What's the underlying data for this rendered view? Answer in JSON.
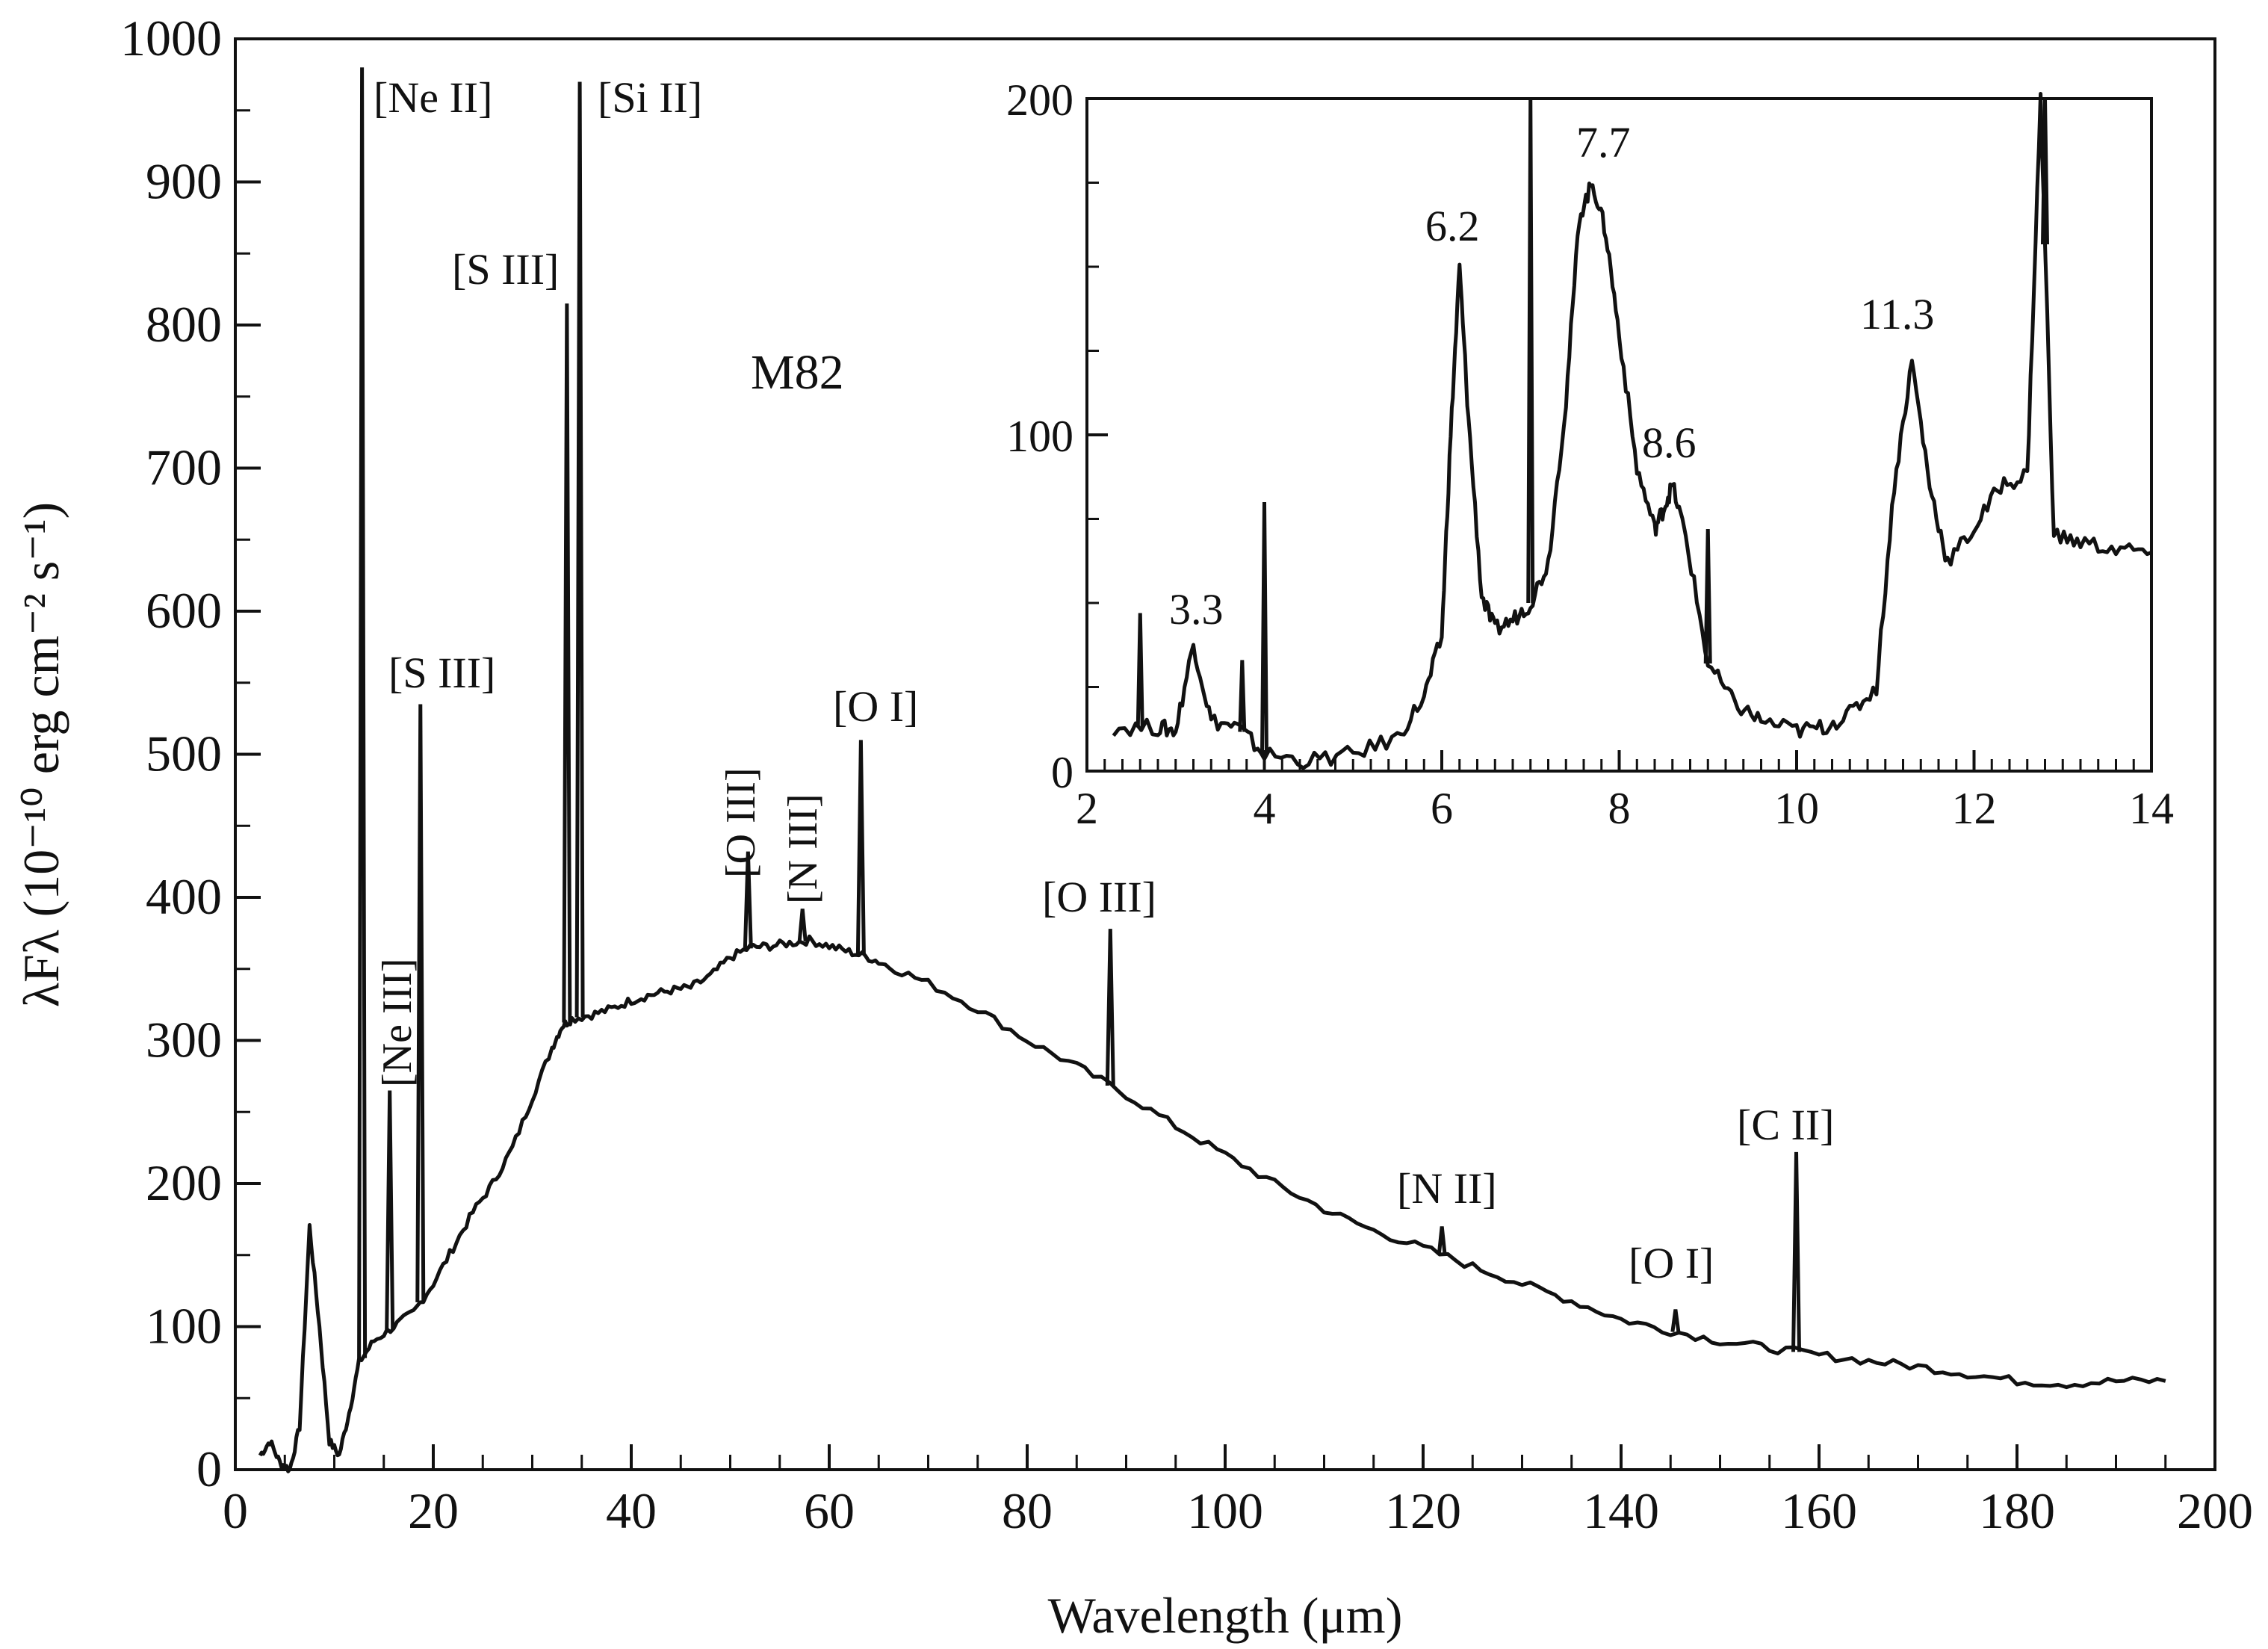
{
  "chart_data": [
    {
      "type": "line",
      "title": "M82",
      "xlabel": "Wavelength (μm)",
      "ylabel": "λFλ (10⁻¹⁰ erg cm⁻² s⁻¹)",
      "xlim": [
        0,
        200
      ],
      "ylim": [
        0,
        1000
      ],
      "x_ticks": [
        "0",
        "20",
        "40",
        "60",
        "80",
        "100",
        "120",
        "140",
        "160",
        "180",
        "200"
      ],
      "y_ticks": [
        "0",
        "100",
        "200",
        "300",
        "400",
        "500",
        "600",
        "700",
        "800",
        "900",
        "1000"
      ],
      "series": [
        {
          "x": [
            2.5,
            3.5,
            4.5,
            5.5,
            6.5,
            7.5,
            8.5,
            9.5,
            10.5,
            11.5,
            12.5,
            14,
            16,
            18,
            20,
            22,
            24,
            26,
            28,
            30,
            32,
            33,
            34,
            36,
            38,
            40,
            42,
            44,
            46,
            48,
            50,
            52,
            54,
            56,
            58,
            60,
            62,
            64,
            66,
            70,
            75,
            80,
            85,
            90,
            95,
            100,
            105,
            110,
            115,
            120,
            125,
            130,
            135,
            140,
            145,
            150,
            155,
            160,
            165,
            170,
            175,
            180,
            185,
            190,
            195
          ],
          "y": [
            10,
            20,
            5,
            0,
            30,
            170,
            100,
            20,
            10,
            40,
            75,
            90,
            100,
            110,
            130,
            155,
            180,
            200,
            225,
            260,
            295,
            310,
            315,
            318,
            322,
            328,
            332,
            335,
            337,
            345,
            358,
            365,
            366,
            368,
            370,
            366,
            362,
            358,
            352,
            340,
            322,
            300,
            282,
            262,
            240,
            220,
            200,
            182,
            167,
            155,
            142,
            130,
            118,
            105,
            97,
            90,
            85,
            80,
            76,
            72,
            67,
            62,
            60,
            62,
            62
          ]
        }
      ],
      "emission_lines": [
        {
          "label": "[Ne II]",
          "x": 12.8,
          "peak": 980
        },
        {
          "label": "[Ne III]",
          "x": 15.6,
          "peak": 265
        },
        {
          "label": "[S III]",
          "x": 18.7,
          "peak": 535
        },
        {
          "label": "[S III]",
          "x": 33.5,
          "peak": 815
        },
        {
          "label": "[Si II]",
          "x": 34.8,
          "peak": 970
        },
        {
          "label": "[O III]",
          "x": 51.8,
          "peak": 432
        },
        {
          "label": "[N III]",
          "x": 57.3,
          "peak": 392
        },
        {
          "label": "[O I]",
          "x": 63.2,
          "peak": 510
        },
        {
          "label": "[O III]",
          "x": 88.4,
          "peak": 378
        },
        {
          "label": "[N II]",
          "x": 121.9,
          "peak": 170
        },
        {
          "label": "[O I]",
          "x": 145.5,
          "peak": 112
        },
        {
          "label": "[C II]",
          "x": 157.7,
          "peak": 222
        }
      ],
      "annotations": [
        "[Ne II]",
        "[Si II]",
        "[S III]",
        "[S III]",
        "[Ne III]",
        "[O III]",
        "[N III]",
        "[O I]",
        "[O III]",
        "[N II]",
        "[O I]",
        "[C II]"
      ],
      "grid": false,
      "legend": "none"
    },
    {
      "type": "line",
      "title": "",
      "xlabel": "",
      "ylabel": "",
      "xlim": [
        2,
        14
      ],
      "ylim": [
        0,
        200
      ],
      "x_ticks": [
        "2",
        "4",
        "6",
        "8",
        "10",
        "12",
        "14"
      ],
      "y_ticks": [
        "0",
        "100",
        "200"
      ],
      "series": [
        {
          "x": [
            2.3,
            2.8,
            3.0,
            3.2,
            3.4,
            3.7,
            4.0,
            4.5,
            5.0,
            5.5,
            5.8,
            6.0,
            6.1,
            6.2,
            6.3,
            6.45,
            6.6,
            6.8,
            7.0,
            7.2,
            7.4,
            7.55,
            7.7,
            7.85,
            8.0,
            8.2,
            8.4,
            8.5,
            8.6,
            8.75,
            9.0,
            9.3,
            9.6,
            10.0,
            10.3,
            10.6,
            10.9,
            11.1,
            11.3,
            11.5,
            11.7,
            12.0,
            12.3,
            12.6,
            12.75,
            12.9,
            13.2,
            13.6,
            14.0
          ],
          "y": [
            13,
            13,
            12,
            38,
            15,
            13,
            5,
            3,
            5,
            10,
            22,
            40,
            100,
            150,
            105,
            52,
            42,
            45,
            50,
            62,
            110,
            165,
            175,
            160,
            130,
            90,
            72,
            78,
            85,
            70,
            32,
            20,
            15,
            12,
            13,
            17,
            25,
            85,
            122,
            85,
            62,
            72,
            85,
            88,
            200,
            70,
            68,
            66,
            65
          ]
        }
      ],
      "emission_lines": [
        {
          "x": 2.6,
          "peak": 47
        },
        {
          "x": 3.75,
          "peak": 33
        },
        {
          "x": 4.0,
          "peak": 80
        },
        {
          "x": 7.0,
          "peak": 200
        },
        {
          "x": 9.0,
          "peak": 72
        },
        {
          "x": 12.8,
          "peak": 200
        }
      ],
      "annotations": [
        "3.3",
        "6.2",
        "7.7",
        "8.6",
        "11.3"
      ],
      "grid": false,
      "legend": "none"
    }
  ]
}
